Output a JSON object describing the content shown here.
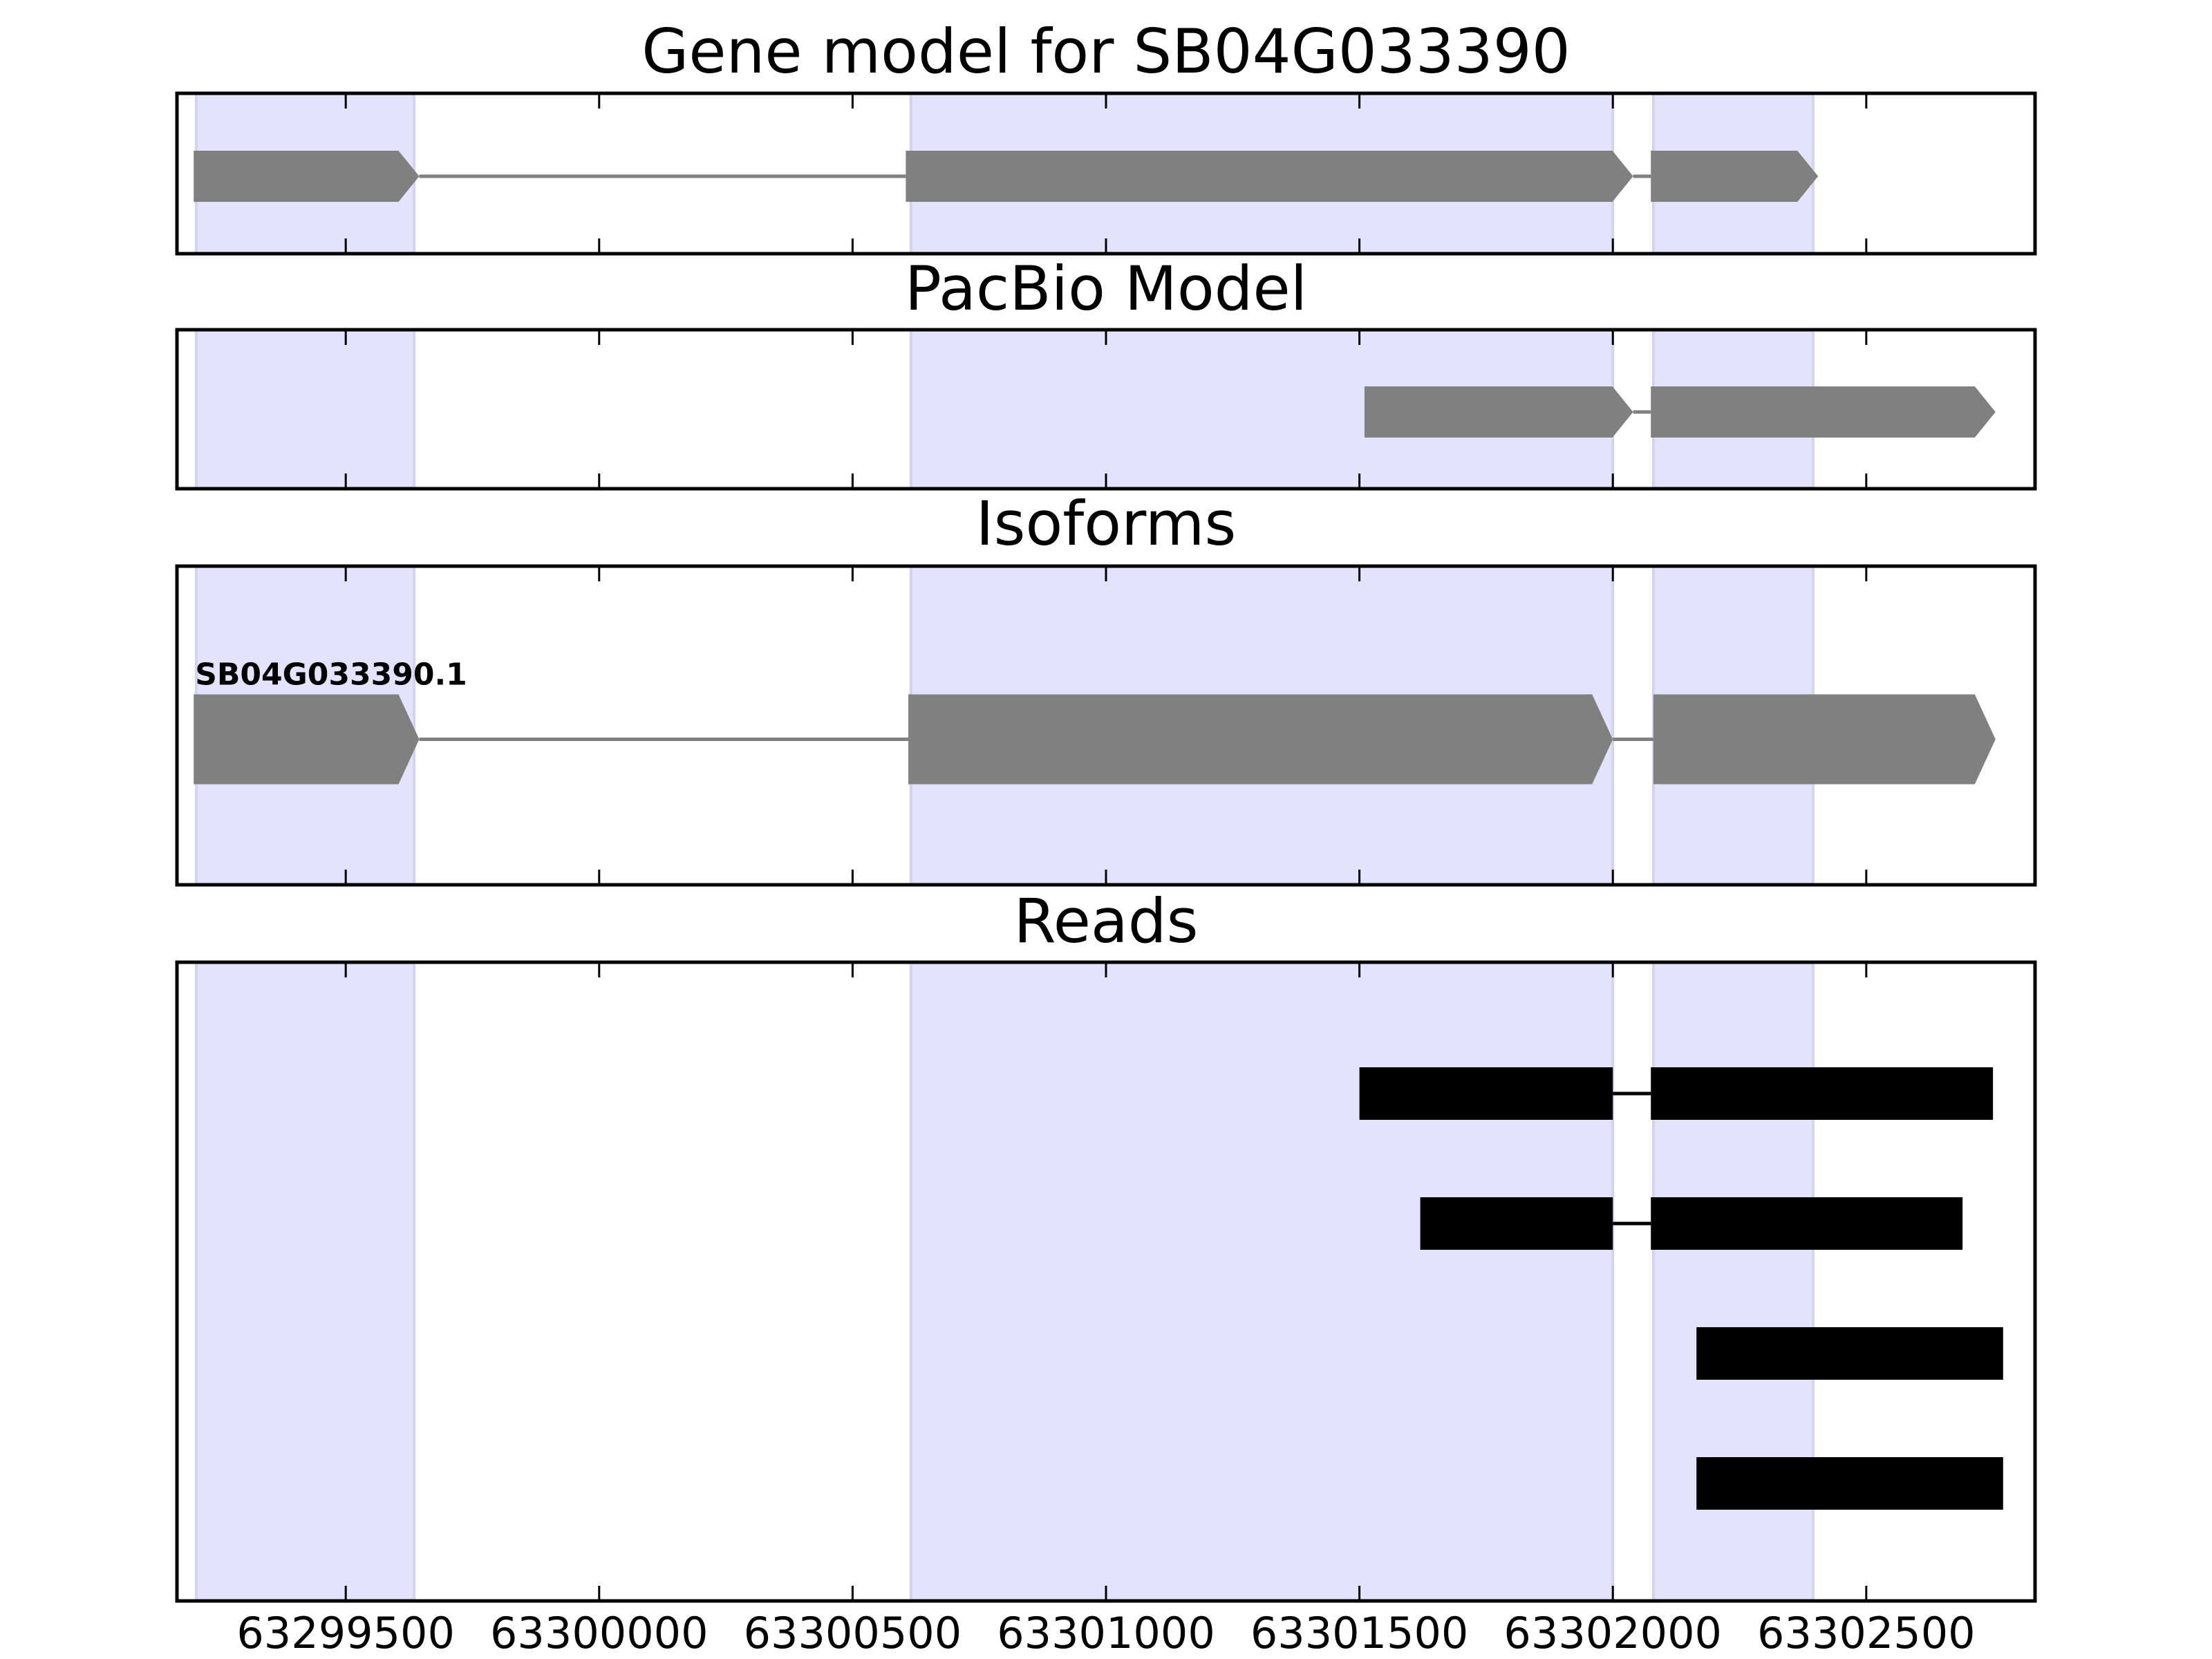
{
  "chart_data": {
    "type": "gene-track",
    "title": "Gene model for SB04G033390",
    "xlim": [
      63299167,
      63302833
    ],
    "xticks": [
      63299500,
      63300000,
      63300500,
      63301000,
      63301500,
      63302000,
      63302500
    ],
    "xtick_labels": [
      "63299500",
      "63300000",
      "63300500",
      "63301000",
      "63301500",
      "63302000",
      "63302500"
    ],
    "colors": {
      "exon": "#808080",
      "read": "#000000",
      "highlight": "#e3e3fd",
      "highlight_edge": "#d2d4ee"
    },
    "highlight_regions": [
      {
        "start": 63299205,
        "end": 63299635
      },
      {
        "start": 63300615,
        "end": 63302000
      },
      {
        "start": 63302080,
        "end": 63302395
      }
    ],
    "panels": [
      {
        "id": "gene-model",
        "title": "Gene model for SB04G033390",
        "kind": "model",
        "strand": "+",
        "exons": [
          {
            "start": 63299200,
            "end": 63299645
          },
          {
            "start": 63300605,
            "end": 63302040
          },
          {
            "start": 63302075,
            "end": 63302405
          }
        ]
      },
      {
        "id": "pacbio-model",
        "title": "PacBio Model",
        "kind": "model",
        "strand": "+",
        "exons": [
          {
            "start": 63301510,
            "end": 63302040
          },
          {
            "start": 63302075,
            "end": 63302755
          }
        ]
      },
      {
        "id": "isoforms",
        "title": "Isoforms",
        "kind": "model",
        "strand": "+",
        "isoform_label": "SB04G033390.1",
        "exons": [
          {
            "start": 63299200,
            "end": 63299645
          },
          {
            "start": 63300610,
            "end": 63302000
          },
          {
            "start": 63302080,
            "end": 63302755
          }
        ]
      },
      {
        "id": "reads",
        "title": "Reads",
        "kind": "reads",
        "reads": [
          {
            "exons": [
              {
                "start": 63301500,
                "end": 63302000
              },
              {
                "start": 63302075,
                "end": 63302750
              }
            ]
          },
          {
            "exons": [
              {
                "start": 63301620,
                "end": 63302000
              },
              {
                "start": 63302075,
                "end": 63302690
              }
            ]
          },
          {
            "exons": [
              {
                "start": 63302165,
                "end": 63302770
              }
            ]
          },
          {
            "exons": [
              {
                "start": 63302165,
                "end": 63302770
              }
            ]
          }
        ]
      }
    ]
  }
}
